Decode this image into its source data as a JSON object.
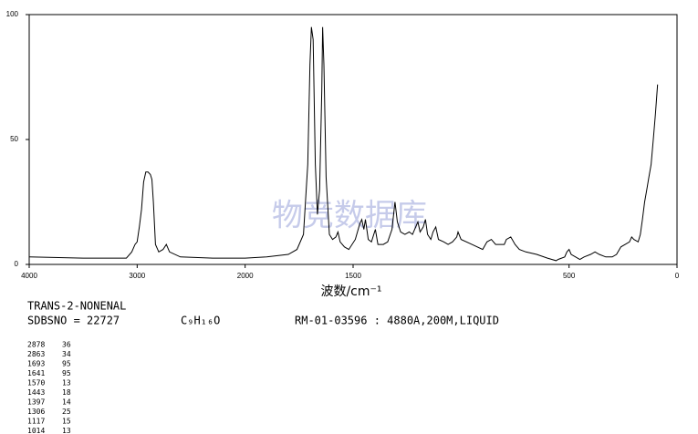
{
  "chart_data": {
    "type": "line",
    "xlabel": "波数/cm⁻¹",
    "watermark": "物竞数据库",
    "xlim": [
      4000,
      0
    ],
    "x_scale_break": 2000,
    "xticks": [
      4000,
      3000,
      2000,
      1500,
      500,
      0
    ],
    "ylim": [
      0,
      100
    ],
    "yticks": [
      0,
      50,
      100
    ],
    "series": [
      {
        "color": "#000000",
        "x": [
          4000,
          3500,
          3100,
          3050,
          3020,
          3000,
          2980,
          2960,
          2940,
          2920,
          2900,
          2878,
          2863,
          2850,
          2830,
          2800,
          2760,
          2730,
          2700,
          2600,
          2300,
          2000,
          1900,
          1800,
          1760,
          1730,
          1710,
          1700,
          1693,
          1685,
          1675,
          1665,
          1655,
          1645,
          1641,
          1635,
          1625,
          1610,
          1595,
          1580,
          1570,
          1560,
          1540,
          1520,
          1490,
          1470,
          1460,
          1450,
          1443,
          1430,
          1415,
          1397,
          1385,
          1360,
          1340,
          1320,
          1306,
          1295,
          1280,
          1260,
          1240,
          1225,
          1210,
          1200,
          1190,
          1175,
          1165,
          1155,
          1140,
          1130,
          1117,
          1105,
          1080,
          1060,
          1040,
          1020,
          1014,
          1000,
          950,
          900,
          880,
          860,
          840,
          800,
          790,
          770,
          750,
          730,
          700,
          650,
          600,
          560,
          550,
          520,
          510,
          500,
          490,
          470,
          450,
          430,
          400,
          380,
          360,
          330,
          300,
          280,
          260,
          240,
          220,
          210,
          200,
          180,
          170,
          160,
          150,
          140,
          130,
          120,
          110,
          100,
          90
        ],
        "values": [
          3,
          2.5,
          2.5,
          5,
          8,
          9,
          15,
          22,
          33,
          37,
          37,
          36,
          34,
          25,
          8,
          5,
          6,
          8,
          5,
          3,
          2.5,
          2.5,
          3,
          4,
          6,
          12,
          40,
          80,
          95,
          90,
          40,
          20,
          30,
          70,
          95,
          80,
          35,
          12,
          10,
          11,
          13,
          9,
          7,
          6,
          10,
          16,
          18,
          14,
          18,
          10,
          9,
          14,
          8,
          8,
          9,
          14,
          25,
          17,
          13,
          12,
          13,
          12,
          15,
          17,
          13,
          15,
          18,
          12,
          10,
          13,
          15,
          10,
          9,
          8,
          9,
          11,
          13,
          10,
          8,
          6,
          9,
          10,
          8,
          8,
          10,
          11,
          8,
          6,
          5,
          4,
          2.5,
          1.5,
          2,
          3,
          5,
          6,
          4,
          3,
          2,
          3,
          4,
          5,
          4,
          3,
          3,
          4,
          7,
          8,
          9,
          11,
          10,
          9,
          12,
          18,
          25,
          30,
          35,
          40,
          50,
          60,
          72
        ]
      }
    ]
  },
  "compound": {
    "name": "TRANS-2-NONENAL",
    "sdbsno": "SDBSNO = 22727",
    "formula": "C₉H₁₆O",
    "conditions": "RM-01-03596 : 4880A,200M,LIQUID"
  },
  "peak_table": {
    "rows": [
      [
        2878,
        36
      ],
      [
        2863,
        34
      ],
      [
        1693,
        95
      ],
      [
        1641,
        95
      ],
      [
        1570,
        13
      ],
      [
        1443,
        18
      ],
      [
        1397,
        14
      ],
      [
        1306,
        25
      ],
      [
        1117,
        15
      ],
      [
        1014,
        13
      ]
    ]
  }
}
